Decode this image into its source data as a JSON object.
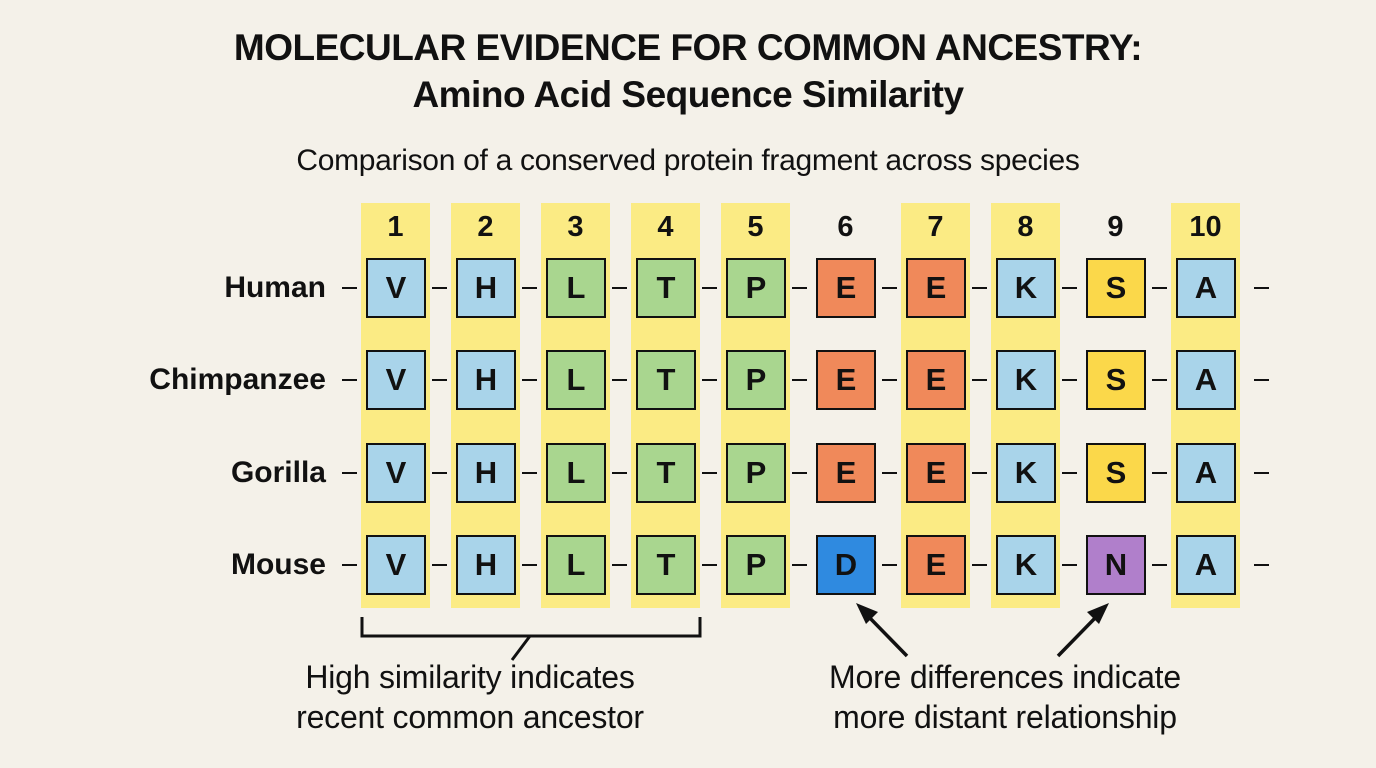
{
  "header": {
    "title_line1": "MOLECULAR EVIDENCE FOR COMMON ANCESTRY:",
    "title_line2": "Amino Acid Sequence Similarity",
    "subtitle": "Comparison of a conserved protein fragment across species"
  },
  "positions": [
    "1",
    "2",
    "3",
    "4",
    "5",
    "6",
    "7",
    "8",
    "9",
    "10"
  ],
  "highlighted_positions": [
    1,
    2,
    3,
    4,
    5,
    7,
    8,
    10
  ],
  "colors": {
    "background": "#f4f1e9",
    "highlight": "#fbeb84",
    "V": "#a9d4ea",
    "H": "#a9d4ea",
    "K": "#a9d4ea",
    "A": "#a9d4ea",
    "L": "#a9d68f",
    "T": "#a9d68f",
    "P": "#a9d68f",
    "E": "#f0895a",
    "S": "#fbd84a",
    "D": "#2f8ae0",
    "N": "#b07fcb"
  },
  "species": [
    {
      "name": "Human",
      "sequence": [
        "V",
        "H",
        "L",
        "T",
        "P",
        "E",
        "E",
        "K",
        "S",
        "A"
      ]
    },
    {
      "name": "Chimpanzee",
      "sequence": [
        "V",
        "H",
        "L",
        "T",
        "P",
        "E",
        "E",
        "K",
        "S",
        "A"
      ]
    },
    {
      "name": "Gorilla",
      "sequence": [
        "V",
        "H",
        "L",
        "T",
        "P",
        "E",
        "E",
        "K",
        "S",
        "A"
      ]
    },
    {
      "name": "Mouse",
      "sequence": [
        "V",
        "H",
        "L",
        "T",
        "P",
        "D",
        "E",
        "K",
        "N",
        "A"
      ]
    }
  ],
  "annotations": {
    "left_line1": "High similarity indicates",
    "left_line2": "recent common ancestor",
    "right_line1": "More differences indicate",
    "right_line2": "more distant relationship"
  }
}
